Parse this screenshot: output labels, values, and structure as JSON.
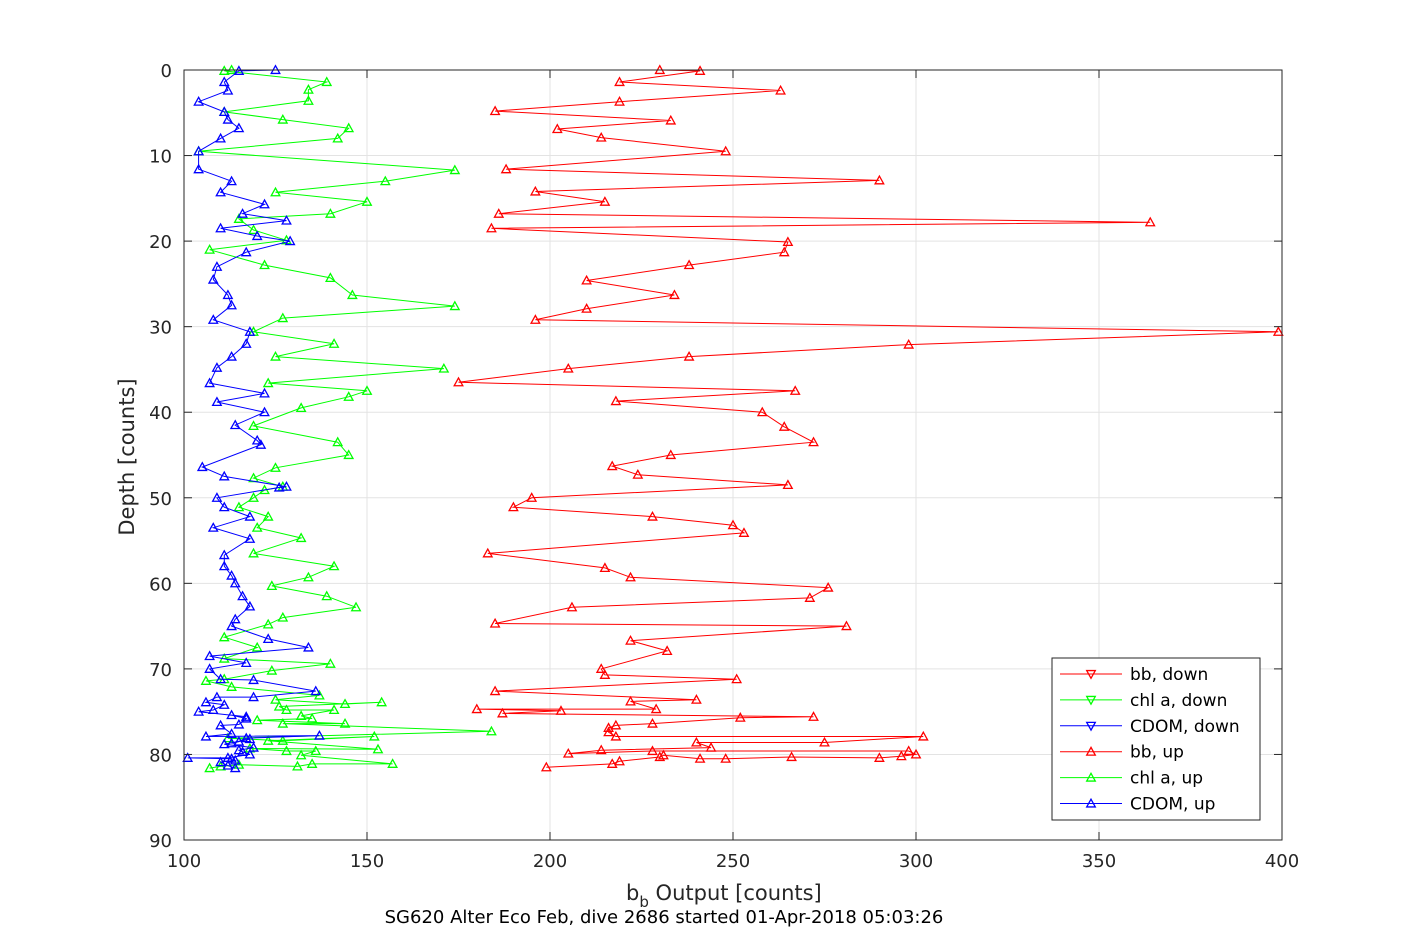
{
  "figure": {
    "footer": "SG620 Alter Eco Feb, dive 2686 started 01-Apr-2018 05:03:26"
  },
  "chart_data": {
    "type": "line",
    "xlabel_main": "b",
    "xlabel_sub": "b",
    "xlabel_rest": " Output [counts]",
    "ylabel": "Depth [counts]",
    "xlim": [
      100,
      400
    ],
    "ylim": [
      0,
      90
    ],
    "y_reversed": true,
    "grid": true,
    "legend_position": "bottom-right",
    "xticks": [
      100,
      150,
      200,
      250,
      300,
      350,
      400
    ],
    "yticks": [
      0,
      10,
      20,
      30,
      40,
      50,
      60,
      70,
      80,
      90
    ],
    "series": [
      {
        "name": "bb, down",
        "color": "#ff0000",
        "marker": "triangle-down",
        "points": []
      },
      {
        "name": "chl a, down",
        "color": "#00ff00",
        "marker": "triangle-down",
        "points": []
      },
      {
        "name": "CDOM, down",
        "color": "#0000ff",
        "marker": "triangle-down",
        "points": []
      },
      {
        "name": "bb, up",
        "color": "#ff0000",
        "marker": "triangle-up",
        "points": [
          [
            199,
            81.5
          ],
          [
            217,
            81.1
          ],
          [
            219,
            80.8
          ],
          [
            230,
            80.3
          ],
          [
            231,
            80.1
          ],
          [
            241,
            80.5
          ],
          [
            248,
            80.5
          ],
          [
            266,
            80.3
          ],
          [
            290,
            80.4
          ],
          [
            296,
            80.2
          ],
          [
            300,
            80.0
          ],
          [
            298,
            79.6
          ],
          [
            228,
            79.6
          ],
          [
            205,
            79.9
          ],
          [
            214,
            79.5
          ],
          [
            244,
            79.2
          ],
          [
            240,
            78.6
          ],
          [
            275,
            78.6
          ],
          [
            302,
            77.9
          ],
          [
            218,
            77.9
          ],
          [
            216,
            77.4
          ],
          [
            216,
            76.9
          ],
          [
            218,
            76.6
          ],
          [
            228,
            76.4
          ],
          [
            252,
            75.7
          ],
          [
            272,
            75.6
          ],
          [
            187,
            75.2
          ],
          [
            203,
            74.9
          ],
          [
            180,
            74.7
          ],
          [
            229,
            74.7
          ],
          [
            222,
            73.8
          ],
          [
            240,
            73.6
          ],
          [
            185,
            72.6
          ],
          [
            251,
            71.2
          ],
          [
            215,
            70.7
          ],
          [
            214,
            70.0
          ],
          [
            232,
            67.9
          ],
          [
            222,
            66.7
          ],
          [
            281,
            65.0
          ],
          [
            185,
            64.7
          ],
          [
            206,
            62.8
          ],
          [
            271,
            61.7
          ],
          [
            276,
            60.5
          ],
          [
            222,
            59.3
          ],
          [
            215,
            58.2
          ],
          [
            183,
            56.5
          ],
          [
            253,
            54.1
          ],
          [
            250,
            53.2
          ],
          [
            228,
            52.2
          ],
          [
            190,
            51.1
          ],
          [
            195,
            50.0
          ],
          [
            265,
            48.5
          ],
          [
            224,
            47.3
          ],
          [
            217,
            46.3
          ],
          [
            233,
            45.0
          ],
          [
            272,
            43.5
          ],
          [
            264,
            41.7
          ],
          [
            258,
            40.0
          ],
          [
            218,
            38.7
          ],
          [
            267,
            37.5
          ],
          [
            175,
            36.5
          ],
          [
            205,
            34.9
          ],
          [
            238,
            33.5
          ],
          [
            298,
            32.1
          ],
          [
            399,
            30.6
          ],
          [
            196,
            29.2
          ],
          [
            210,
            27.9
          ],
          [
            234,
            26.3
          ],
          [
            210,
            24.6
          ],
          [
            238,
            22.8
          ],
          [
            264,
            21.3
          ],
          [
            265,
            20.1
          ],
          [
            184,
            18.5
          ],
          [
            364,
            17.8
          ],
          [
            186,
            16.8
          ],
          [
            215,
            15.4
          ],
          [
            196,
            14.2
          ],
          [
            290,
            12.9
          ],
          [
            188,
            11.6
          ],
          [
            248,
            9.5
          ],
          [
            214,
            7.9
          ],
          [
            202,
            6.9
          ],
          [
            233,
            5.9
          ],
          [
            185,
            4.8
          ],
          [
            219,
            3.7
          ],
          [
            263,
            2.4
          ],
          [
            219,
            1.4
          ],
          [
            241,
            0.1
          ],
          [
            230,
            0
          ]
        ]
      },
      {
        "name": "chl a, up",
        "color": "#00ff00",
        "marker": "triangle-up",
        "points": [
          [
            107,
            81.6
          ],
          [
            110,
            81.4
          ],
          [
            115,
            81.2
          ],
          [
            131,
            81.4
          ],
          [
            135,
            81.1
          ],
          [
            157,
            81.1
          ],
          [
            132,
            80.1
          ],
          [
            136,
            79.6
          ],
          [
            128,
            79.6
          ],
          [
            118,
            79.3
          ],
          [
            153,
            79.4
          ],
          [
            123,
            78.4
          ],
          [
            152,
            77.9
          ],
          [
            127,
            78.4
          ],
          [
            112,
            78.1
          ],
          [
            184,
            77.3
          ],
          [
            127,
            76.4
          ],
          [
            144,
            76.4
          ],
          [
            120,
            76.0
          ],
          [
            135,
            75.8
          ],
          [
            132,
            75.5
          ],
          [
            141,
            74.8
          ],
          [
            128,
            74.8
          ],
          [
            126,
            74.4
          ],
          [
            154,
            73.9
          ],
          [
            144,
            74.1
          ],
          [
            125,
            73.6
          ],
          [
            137,
            73.1
          ],
          [
            113,
            72.1
          ],
          [
            106,
            71.4
          ],
          [
            111,
            71.2
          ],
          [
            124,
            70.2
          ],
          [
            140,
            69.4
          ],
          [
            111,
            68.8
          ],
          [
            120,
            67.5
          ],
          [
            111,
            66.3
          ],
          [
            123,
            64.8
          ],
          [
            127,
            64.0
          ],
          [
            147,
            62.8
          ],
          [
            139,
            61.5
          ],
          [
            124,
            60.3
          ],
          [
            134,
            59.3
          ],
          [
            141,
            58.0
          ],
          [
            119,
            56.5
          ],
          [
            132,
            54.7
          ],
          [
            120,
            53.5
          ],
          [
            123,
            52.2
          ],
          [
            115,
            51.1
          ],
          [
            119,
            50.0
          ],
          [
            122,
            49.1
          ],
          [
            127,
            48.7
          ],
          [
            119,
            47.7
          ],
          [
            125,
            46.5
          ],
          [
            145,
            45.0
          ],
          [
            142,
            43.5
          ],
          [
            119,
            41.6
          ],
          [
            132,
            39.5
          ],
          [
            145,
            38.2
          ],
          [
            150,
            37.5
          ],
          [
            123,
            36.6
          ],
          [
            171,
            34.9
          ],
          [
            125,
            33.5
          ],
          [
            141,
            32.0
          ],
          [
            119,
            30.6
          ],
          [
            127,
            29.0
          ],
          [
            174,
            27.6
          ],
          [
            146,
            26.3
          ],
          [
            140,
            24.3
          ],
          [
            122,
            22.8
          ],
          [
            107,
            21.0
          ],
          [
            128,
            19.9
          ],
          [
            119,
            18.7
          ],
          [
            115,
            17.4
          ],
          [
            140,
            16.8
          ],
          [
            150,
            15.4
          ],
          [
            125,
            14.3
          ],
          [
            155,
            13.0
          ],
          [
            174,
            11.7
          ],
          [
            104,
            9.5
          ],
          [
            142,
            8.0
          ],
          [
            145,
            6.8
          ],
          [
            127,
            5.8
          ],
          [
            111,
            4.9
          ],
          [
            134,
            3.6
          ],
          [
            134,
            2.3
          ],
          [
            139,
            1.4
          ],
          [
            111,
            0.1
          ],
          [
            113,
            0
          ]
        ]
      },
      {
        "name": "CDOM, up",
        "color": "#0000ff",
        "marker": "triangle-up",
        "points": [
          [
            114,
            81.6
          ],
          [
            112,
            81.3
          ],
          [
            110,
            80.9
          ],
          [
            114,
            80.7
          ],
          [
            113,
            80.5
          ],
          [
            101,
            80.4
          ],
          [
            112,
            80.4
          ],
          [
            118,
            80.0
          ],
          [
            116,
            79.7
          ],
          [
            115,
            79.5
          ],
          [
            119,
            79.2
          ],
          [
            111,
            78.8
          ],
          [
            118,
            78.2
          ],
          [
            113,
            78.7
          ],
          [
            115,
            78.5
          ],
          [
            117,
            78.1
          ],
          [
            137,
            77.8
          ],
          [
            106,
            77.9
          ],
          [
            113,
            77.6
          ],
          [
            110,
            76.6
          ],
          [
            115,
            76.5
          ],
          [
            117,
            75.8
          ],
          [
            113,
            75.4
          ],
          [
            117,
            75.6
          ],
          [
            104,
            75.0
          ],
          [
            108,
            74.8
          ],
          [
            111,
            74.2
          ],
          [
            106,
            73.9
          ],
          [
            109,
            73.3
          ],
          [
            119,
            73.3
          ],
          [
            136,
            72.6
          ],
          [
            119,
            71.3
          ],
          [
            110,
            71.2
          ],
          [
            107,
            70.0
          ],
          [
            117,
            69.3
          ],
          [
            107,
            68.5
          ],
          [
            134,
            67.5
          ],
          [
            123,
            66.5
          ],
          [
            113,
            65.0
          ],
          [
            114,
            64.2
          ],
          [
            118,
            62.7
          ],
          [
            116,
            61.5
          ],
          [
            114,
            60.0
          ],
          [
            113,
            59.1
          ],
          [
            111,
            58.0
          ],
          [
            111,
            56.7
          ],
          [
            118,
            54.8
          ],
          [
            108,
            53.5
          ],
          [
            118,
            52.2
          ],
          [
            111,
            51.1
          ],
          [
            109,
            50.0
          ],
          [
            126,
            48.8
          ],
          [
            128,
            48.7
          ],
          [
            111,
            47.5
          ],
          [
            105,
            46.4
          ],
          [
            121,
            43.8
          ],
          [
            120,
            43.3
          ],
          [
            114,
            41.5
          ],
          [
            122,
            40.0
          ],
          [
            109,
            38.8
          ],
          [
            122,
            37.8
          ],
          [
            107,
            36.6
          ],
          [
            109,
            34.8
          ],
          [
            113,
            33.5
          ],
          [
            117,
            32.0
          ],
          [
            118,
            30.6
          ],
          [
            108,
            29.2
          ],
          [
            113,
            27.5
          ],
          [
            112,
            26.3
          ],
          [
            108,
            24.5
          ],
          [
            109,
            23.0
          ],
          [
            117,
            21.3
          ],
          [
            129,
            20.0
          ],
          [
            120,
            19.4
          ],
          [
            110,
            18.5
          ],
          [
            128,
            17.6
          ],
          [
            116,
            16.8
          ],
          [
            122,
            15.7
          ],
          [
            110,
            14.3
          ],
          [
            113,
            13.0
          ],
          [
            104,
            11.6
          ],
          [
            104,
            9.5
          ],
          [
            110,
            8.0
          ],
          [
            115,
            6.8
          ],
          [
            112,
            5.8
          ],
          [
            111,
            4.9
          ],
          [
            104,
            3.7
          ],
          [
            112,
            2.4
          ],
          [
            111,
            1.4
          ],
          [
            115,
            0.1
          ],
          [
            125,
            0
          ]
        ]
      }
    ]
  }
}
